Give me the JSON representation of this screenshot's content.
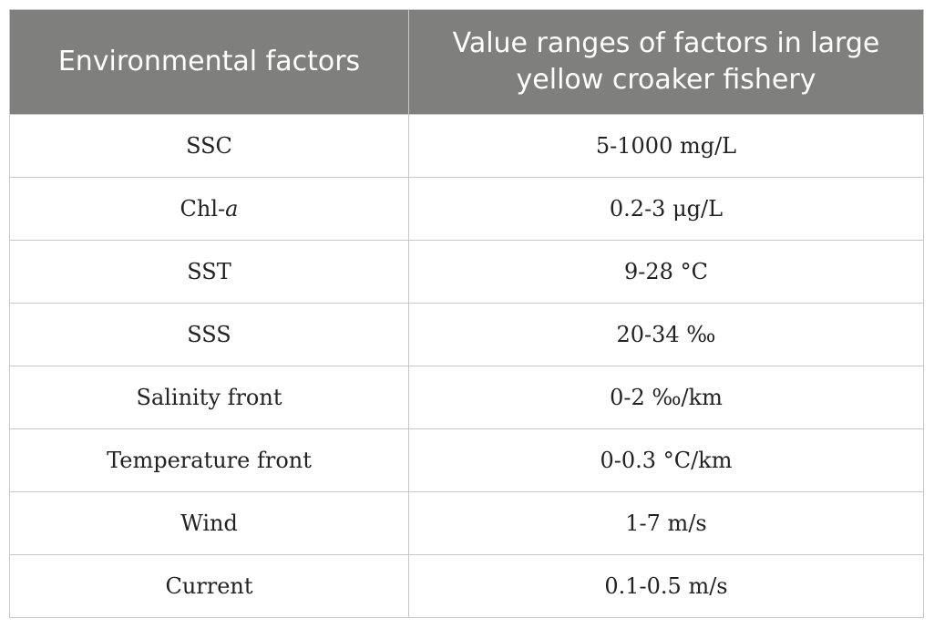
{
  "table": {
    "headers": [
      "Environmental factors",
      "Value ranges of factors in large yellow croaker fishery"
    ],
    "rows": [
      {
        "factor": "SSC",
        "range": "5-1000 mg/L"
      },
      {
        "factor_prefix": "Chl-",
        "factor_italic": "a",
        "range": "0.2-3 μg/L"
      },
      {
        "factor": "SST",
        "range": "9-28 °C"
      },
      {
        "factor": "SSS",
        "range": "20-34 ‰"
      },
      {
        "factor": "Salinity front",
        "range": "0-2 ‰/km"
      },
      {
        "factor": "Temperature front",
        "range": "0-0.3 °C/km"
      },
      {
        "factor": "Wind",
        "range": "1-7 m/s"
      },
      {
        "factor": "Current",
        "range": "0.1-0.5 m/s"
      }
    ]
  }
}
